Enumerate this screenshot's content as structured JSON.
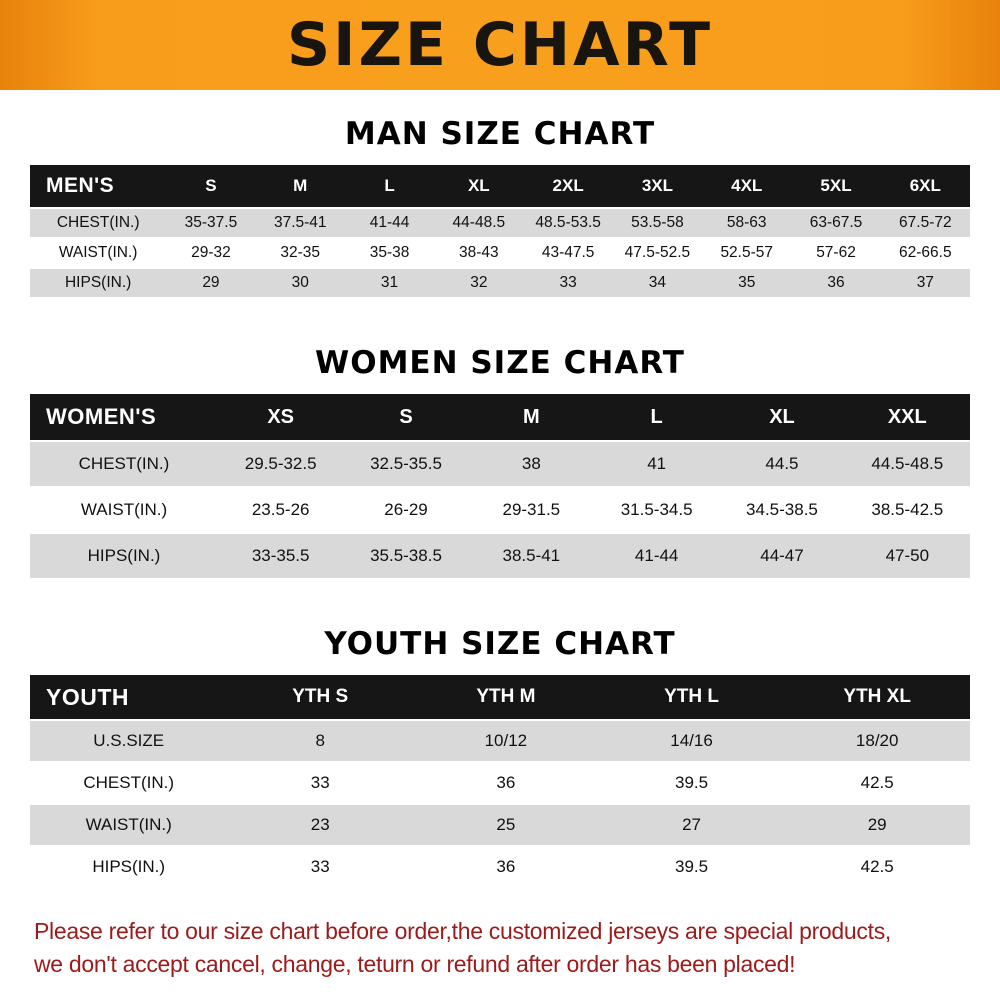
{
  "banner": {
    "title": "SIZE CHART"
  },
  "colors": {
    "banner_bg": "#f89c1b",
    "table_header_bg": "#161616",
    "zebra_row_bg": "#d9d9d9",
    "footer_text": "#9c1a1a"
  },
  "sections": [
    {
      "heading": "MAN SIZE CHART",
      "table": {
        "label": "MEN'S",
        "columns": [
          "S",
          "M",
          "L",
          "XL",
          "2XL",
          "3XL",
          "4XL",
          "5XL",
          "6XL"
        ],
        "rows": [
          {
            "label": "CHEST(IN.)",
            "values": [
              "35-37.5",
              "37.5-41",
              "41-44",
              "44-48.5",
              "48.5-53.5",
              "53.5-58",
              "58-63",
              "63-67.5",
              "67.5-72"
            ]
          },
          {
            "label": "WAIST(IN.)",
            "values": [
              "29-32",
              "32-35",
              "35-38",
              "38-43",
              "43-47.5",
              "47.5-52.5",
              "52.5-57",
              "57-62",
              "62-66.5"
            ]
          },
          {
            "label": "HIPS(IN.)",
            "values": [
              "29",
              "30",
              "31",
              "32",
              "33",
              "34",
              "35",
              "36",
              "37"
            ]
          }
        ]
      }
    },
    {
      "heading": "WOMEN SIZE CHART",
      "table": {
        "label": "WOMEN'S",
        "columns": [
          "XS",
          "S",
          "M",
          "L",
          "XL",
          "XXL"
        ],
        "rows": [
          {
            "label": "CHEST(IN.)",
            "values": [
              "29.5-32.5",
              "32.5-35.5",
              "38",
              "41",
              "44.5",
              "44.5-48.5"
            ]
          },
          {
            "label": "WAIST(IN.)",
            "values": [
              "23.5-26",
              "26-29",
              "29-31.5",
              "31.5-34.5",
              "34.5-38.5",
              "38.5-42.5"
            ]
          },
          {
            "label": "HIPS(IN.)",
            "values": [
              "33-35.5",
              "35.5-38.5",
              "38.5-41",
              "41-44",
              "44-47",
              "47-50"
            ]
          }
        ]
      }
    },
    {
      "heading": "YOUTH SIZE CHART",
      "table": {
        "label": "YOUTH",
        "columns": [
          "YTH S",
          "YTH M",
          "YTH L",
          "YTH XL"
        ],
        "rows": [
          {
            "label": "U.S.SIZE",
            "values": [
              "8",
              "10/12",
              "14/16",
              "18/20"
            ]
          },
          {
            "label": "CHEST(IN.)",
            "values": [
              "33",
              "36",
              "39.5",
              "42.5"
            ]
          },
          {
            "label": "WAIST(IN.)",
            "values": [
              "23",
              "25",
              "27",
              "29"
            ]
          },
          {
            "label": "HIPS(IN.)",
            "values": [
              "33",
              "36",
              "39.5",
              "42.5"
            ]
          }
        ]
      }
    }
  ],
  "footer": {
    "lines": [
      "Please refer to our size chart before order,the customized jerseys are special products,",
      "we don't accept cancel, change, teturn or refund after order has been placed!"
    ]
  }
}
